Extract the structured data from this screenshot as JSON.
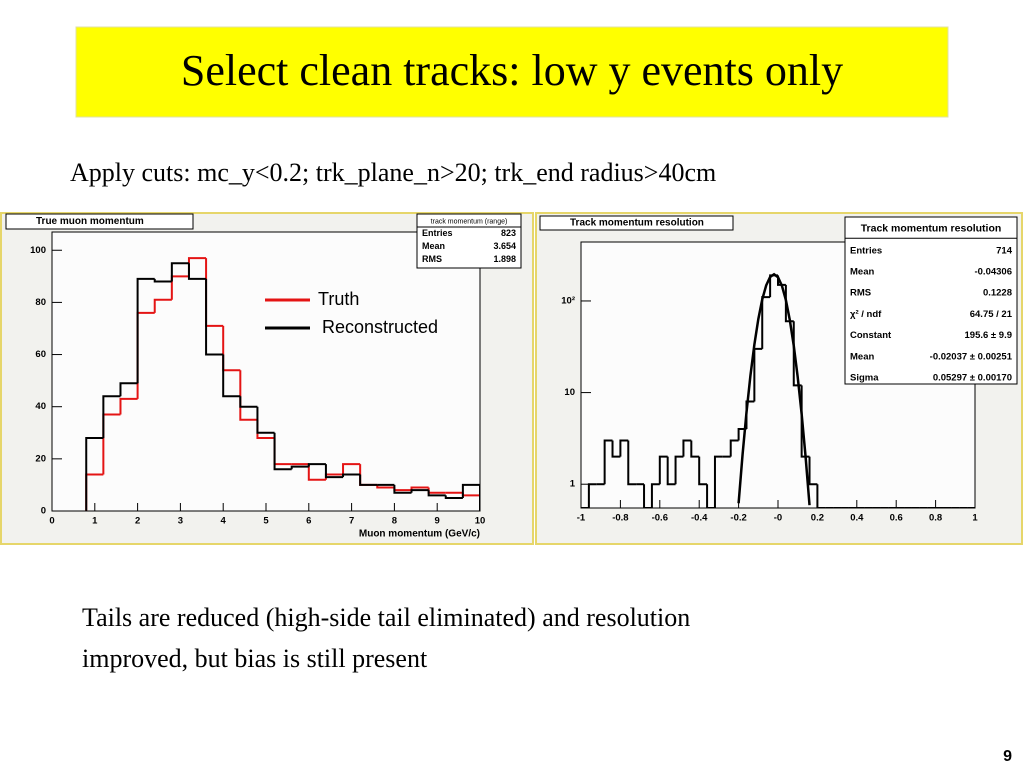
{
  "title": "Select clean tracks: low y events only",
  "subtitle": "Apply cuts:  mc_y<0.2;  trk_plane_n>20;  trk_end radius>40cm",
  "body": [
    "Tails are reduced (high-side tail eliminated) and resolution",
    "improved, but bias is still present"
  ],
  "page_number": "9",
  "chart_data": [
    {
      "type": "histogram",
      "title": "True muon momentum",
      "xlabel": "Muon momentum (GeV/c)",
      "stats_title": "track momentum (range)",
      "stats": [
        [
          "Entries",
          "823"
        ],
        [
          "Mean",
          "3.654"
        ],
        [
          "RMS",
          "1.898"
        ]
      ],
      "bins": [
        0.8,
        1.2,
        1.6,
        2.0,
        2.4,
        2.8,
        3.2,
        3.6,
        4.0,
        4.4,
        4.8,
        5.2,
        5.6,
        6.0,
        6.4,
        6.8,
        7.2,
        7.6,
        8.0,
        8.4,
        8.8,
        9.2,
        9.6,
        10.0
      ],
      "series": [
        {
          "name": "Truth",
          "color": "#e41414",
          "values": [
            14,
            37,
            43,
            76,
            81,
            90,
            97,
            71,
            54,
            35,
            28,
            18,
            18,
            12,
            14,
            18,
            10,
            9,
            8,
            9,
            7,
            7,
            6
          ]
        },
        {
          "name": "Reconstructed",
          "color": "#000000",
          "values": [
            28,
            44,
            49,
            89,
            88,
            95,
            89,
            60,
            44,
            40,
            30,
            16,
            17,
            18,
            13,
            14,
            10,
            10,
            7,
            8,
            6,
            5,
            10
          ]
        }
      ],
      "xlim": [
        0,
        10
      ],
      "ylim": [
        0,
        107
      ],
      "xticks": [
        0,
        1,
        2,
        3,
        4,
        5,
        6,
        7,
        8,
        9,
        10
      ],
      "yticks": [
        0,
        20,
        40,
        60,
        80,
        100
      ],
      "log_y": false
    },
    {
      "type": "histogram",
      "title": "Track momentum resolution",
      "stats_title": "Track momentum resolution",
      "stats": [
        [
          "Entries",
          "714"
        ],
        [
          "Mean",
          "-0.04306"
        ],
        [
          "RMS",
          "0.1228"
        ],
        [
          "χ² / ndf",
          "64.75 / 21"
        ],
        [
          "Constant",
          "195.6 ± 9.9"
        ],
        [
          "Mean",
          "-0.02037 ± 0.00251"
        ],
        [
          "Sigma",
          "0.05297 ± 0.00170"
        ]
      ],
      "bins": [
        -1,
        -0.96,
        -0.92,
        -0.88,
        -0.84,
        -0.8,
        -0.76,
        -0.72,
        -0.68,
        -0.64,
        -0.6,
        -0.56,
        -0.52,
        -0.48,
        -0.44,
        -0.4,
        -0.36,
        -0.32,
        -0.28,
        -0.24,
        -0.2,
        -0.16,
        -0.12,
        -0.08,
        -0.04,
        0,
        0.04,
        0.08,
        0.12,
        0.16,
        0.2,
        0.24,
        0.28,
        0.32,
        0.36,
        0.4,
        0.44,
        0.48,
        0.52,
        0.56,
        0.6,
        0.64,
        0.68,
        0.72,
        0.76,
        0.8,
        0.84,
        0.88,
        0.92,
        0.96,
        1
      ],
      "series": [
        {
          "color": "#000000",
          "values": [
            0,
            1,
            1,
            3,
            2,
            3,
            1,
            1,
            0,
            1,
            2,
            1,
            2,
            3,
            2,
            1,
            0,
            2,
            2,
            3,
            4,
            8,
            30,
            110,
            190,
            150,
            60,
            12,
            2,
            1,
            0,
            0,
            0,
            0,
            0,
            0,
            0,
            0,
            0,
            0,
            0,
            0,
            0,
            0,
            0,
            0,
            0,
            0,
            0,
            0
          ]
        }
      ],
      "fit": {
        "color": "#000000",
        "x": [
          -0.2,
          -0.18,
          -0.16,
          -0.14,
          -0.12,
          -0.1,
          -0.08,
          -0.06,
          -0.04,
          -0.02,
          0,
          0.02,
          0.04,
          0.06,
          0.08,
          0.1,
          0.12,
          0.14,
          0.16
        ],
        "values": [
          0.62,
          2.09,
          6.06,
          15.3,
          33.3,
          63.2,
          103.8,
          147.9,
          182.6,
          195.6,
          181.7,
          146.3,
          102.2,
          61.9,
          32.5,
          14.8,
          5.84,
          2.0,
          0.59
        ]
      },
      "xlim": [
        -1,
        1
      ],
      "ylim": [
        0.55,
        440
      ],
      "xticks": [
        -1,
        -0.8,
        -0.6,
        -0.4,
        -0.2,
        {
          "value": 0,
          "label": "-0"
        },
        0.2,
        0.4,
        0.6,
        0.8,
        1
      ],
      "yticks": [
        1,
        10,
        {
          "value": 100,
          "label": "10²"
        }
      ],
      "log_y": true
    }
  ]
}
